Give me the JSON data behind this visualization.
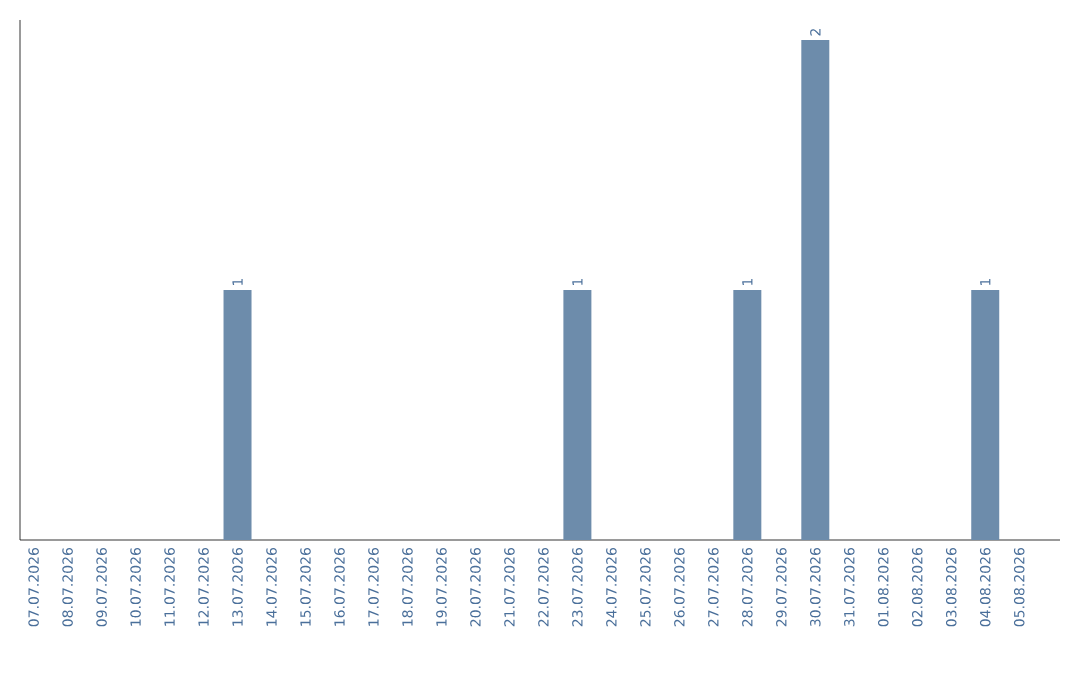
{
  "chart_data": {
    "type": "bar",
    "categories": [
      "07.07.2026",
      "08.07.2026",
      "09.07.2026",
      "10.07.2026",
      "11.07.2026",
      "12.07.2026",
      "13.07.2026",
      "14.07.2026",
      "15.07.2026",
      "16.07.2026",
      "17.07.2026",
      "18.07.2026",
      "19.07.2026",
      "20.07.2026",
      "21.07.2026",
      "22.07.2026",
      "23.07.2026",
      "24.07.2026",
      "25.07.2026",
      "26.07.2026",
      "27.07.2026",
      "28.07.2026",
      "29.07.2026",
      "30.07.2026",
      "31.07.2026",
      "01.08.2026",
      "02.08.2026",
      "03.08.2026",
      "04.08.2026",
      "05.08.2026"
    ],
    "values": [
      0,
      0,
      0,
      0,
      0,
      0,
      1,
      0,
      0,
      0,
      0,
      0,
      0,
      0,
      0,
      0,
      1,
      0,
      0,
      0,
      0,
      1,
      0,
      2,
      0,
      0,
      0,
      0,
      1,
      0
    ],
    "value_labels": [
      null,
      null,
      null,
      null,
      null,
      null,
      "1",
      null,
      null,
      null,
      null,
      null,
      null,
      null,
      null,
      null,
      "1",
      null,
      null,
      null,
      null,
      "1",
      null,
      "2",
      null,
      null,
      null,
      null,
      "1",
      null
    ],
    "color": "#6d8cab"
  }
}
